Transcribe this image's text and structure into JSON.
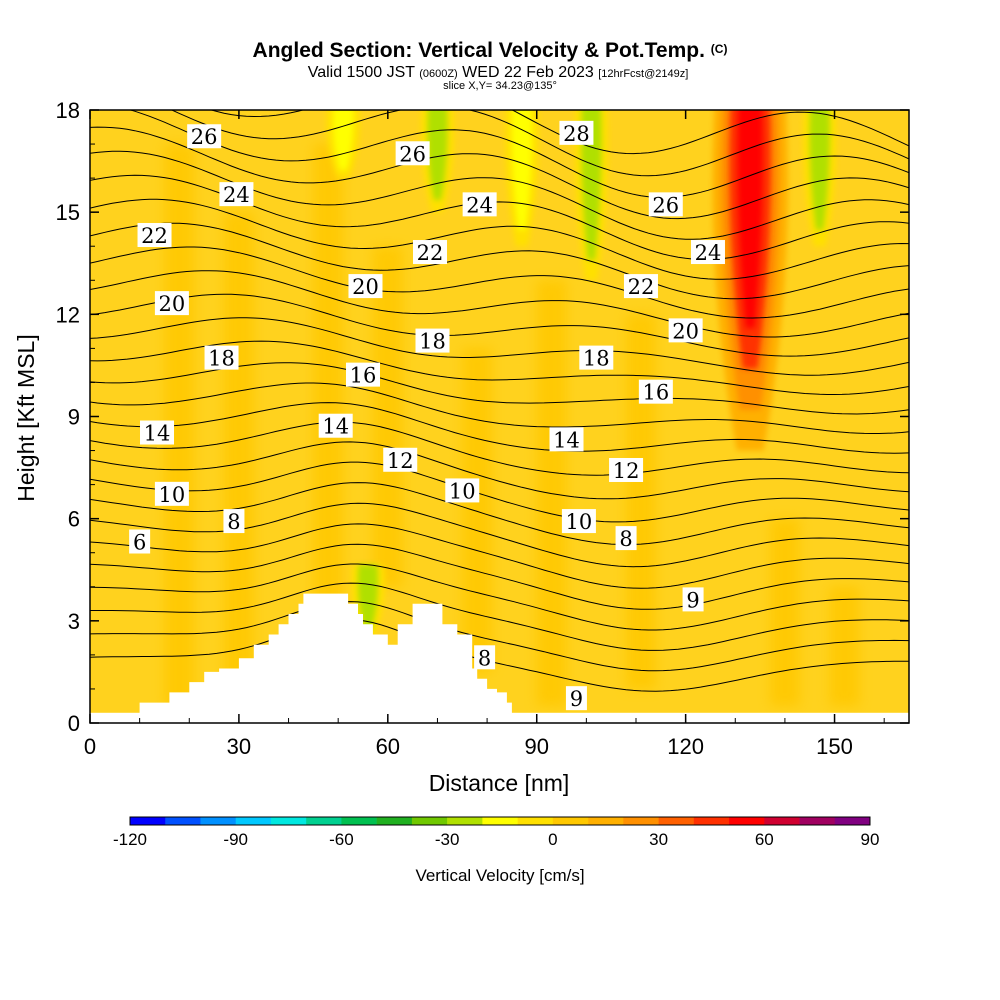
{
  "chart_data": {
    "type": "heatmap",
    "title": "Angled Section: Vertical Velocity & Pot.Temp.",
    "title_suffix": "(C)",
    "subtitle": {
      "valid_prefix": "Valid 1500 JST",
      "utc": "(0600Z)",
      "date": "WED 22 Feb 2023",
      "forecast": "[12hrFcst@2149z]"
    },
    "slice_text": "slice X,Y= 34.23@135°",
    "xlabel": "Distance [nm]",
    "ylabel": "Height [Kft MSL]",
    "xlim": [
      0,
      165
    ],
    "ylim": [
      0,
      18
    ],
    "xticks": [
      0,
      30,
      60,
      90,
      120,
      150
    ],
    "yticks": [
      0,
      3,
      6,
      9,
      12,
      15,
      18
    ],
    "colorbar": {
      "label": "Vertical Velocity [cm/s]",
      "tick_labels": [
        "-120",
        "-90",
        "-60",
        "-30",
        "0",
        "30",
        "60",
        "90"
      ],
      "tick_values": [
        -120,
        -90,
        -60,
        -30,
        0,
        30,
        60,
        90
      ],
      "colors": [
        "#0000ff",
        "#0050ff",
        "#0090ff",
        "#00c8ff",
        "#00e8e0",
        "#00d090",
        "#00c050",
        "#20b020",
        "#70c800",
        "#b0e000",
        "#ffff00",
        "#ffe000",
        "#ffc800",
        "#ffb000",
        "#ff9000",
        "#ff6000",
        "#ff3000",
        "#ff0000",
        "#d00030",
        "#a00060",
        "#800080"
      ]
    },
    "background_color": "#ffd21e",
    "velocity_features": [
      {
        "kind": "updraft",
        "x": 133,
        "y_from": 8,
        "y_to": 18,
        "peak_cm_s": 55
      },
      {
        "kind": "downdraft",
        "x": 101,
        "y_from": 13,
        "y_to": 18,
        "peak_cm_s": -25
      },
      {
        "kind": "downdraft",
        "x": 70,
        "y_from": 15,
        "y_to": 18,
        "peak_cm_s": -25
      },
      {
        "kind": "downdraft",
        "x": 87,
        "y_from": 14,
        "y_to": 18,
        "peak_cm_s": -20
      },
      {
        "kind": "downdraft",
        "x": 147,
        "y_from": 14,
        "y_to": 18,
        "peak_cm_s": -25
      },
      {
        "kind": "downdraft",
        "x": 51,
        "y_from": 16,
        "y_to": 18,
        "peak_cm_s": -15
      },
      {
        "kind": "downdraft",
        "x": 56,
        "y_from": 2.5,
        "y_to": 4.5,
        "peak_cm_s": -25
      }
    ],
    "theta_label_values": [
      "26",
      "24",
      "22",
      "20",
      "18",
      "14",
      "10",
      "6",
      "8",
      "16",
      "12",
      "28",
      "9"
    ],
    "contour_labels": [
      {
        "text": "26",
        "x": 23,
        "y": 17.2
      },
      {
        "text": "24",
        "x": 29.5,
        "y": 15.5
      },
      {
        "text": "22",
        "x": 13,
        "y": 14.3
      },
      {
        "text": "20",
        "x": 16.5,
        "y": 12.3
      },
      {
        "text": "18",
        "x": 26.5,
        "y": 10.7
      },
      {
        "text": "14",
        "x": 13.5,
        "y": 8.5
      },
      {
        "text": "10",
        "x": 16.5,
        "y": 6.7
      },
      {
        "text": "6",
        "x": 10,
        "y": 5.3
      },
      {
        "text": "8",
        "x": 29,
        "y": 5.9
      },
      {
        "text": "26",
        "x": 65,
        "y": 16.7
      },
      {
        "text": "20",
        "x": 55.5,
        "y": 12.8
      },
      {
        "text": "16",
        "x": 55,
        "y": 10.2
      },
      {
        "text": "14",
        "x": 49.5,
        "y": 8.7
      },
      {
        "text": "22",
        "x": 68.5,
        "y": 13.8
      },
      {
        "text": "24",
        "x": 78.5,
        "y": 15.2
      },
      {
        "text": "18",
        "x": 69,
        "y": 11.2
      },
      {
        "text": "12",
        "x": 62.5,
        "y": 7.7
      },
      {
        "text": "10",
        "x": 75,
        "y": 6.8
      },
      {
        "text": "28",
        "x": 98,
        "y": 17.3
      },
      {
        "text": "26",
        "x": 116,
        "y": 15.2
      },
      {
        "text": "24",
        "x": 124.5,
        "y": 13.8
      },
      {
        "text": "22",
        "x": 111,
        "y": 12.8
      },
      {
        "text": "20",
        "x": 120,
        "y": 11.5
      },
      {
        "text": "18",
        "x": 102,
        "y": 10.7
      },
      {
        "text": "16",
        "x": 114,
        "y": 9.7
      },
      {
        "text": "14",
        "x": 96,
        "y": 8.3
      },
      {
        "text": "12",
        "x": 108,
        "y": 7.4
      },
      {
        "text": "10",
        "x": 98.5,
        "y": 5.9
      },
      {
        "text": "8",
        "x": 108,
        "y": 5.4
      },
      {
        "text": "9",
        "x": 121.5,
        "y": 3.6
      },
      {
        "text": "8",
        "x": 79.5,
        "y": 1.9
      },
      {
        "text": "9",
        "x": 98,
        "y": 0.7
      }
    ],
    "terrain_blocks": [
      [
        10,
        0,
        0.6
      ],
      [
        16,
        0.6,
        0.9
      ],
      [
        20,
        0.9,
        1.2
      ],
      [
        23,
        1.2,
        1.5
      ],
      [
        26,
        1.5,
        1.6
      ],
      [
        30,
        1.6,
        1.9
      ],
      [
        33,
        1.9,
        2.3
      ],
      [
        36,
        2.3,
        2.6
      ],
      [
        38,
        2.6,
        2.9
      ],
      [
        40,
        2.9,
        3.2
      ],
      [
        42,
        3.2,
        3.5
      ],
      [
        43,
        3.5,
        3.8
      ],
      [
        52,
        3.8,
        3.5
      ],
      [
        54,
        3.5,
        3.2
      ],
      [
        55,
        3.2,
        2.9
      ],
      [
        57,
        2.9,
        2.6
      ],
      [
        60,
        2.6,
        2.3
      ],
      [
        62,
        2.3,
        2.9
      ],
      [
        65,
        2.9,
        3.5
      ],
      [
        71,
        3.5,
        2.9
      ],
      [
        74,
        2.9,
        2.6
      ],
      [
        77,
        2.6,
        1.6
      ],
      [
        78,
        1.6,
        1.3
      ],
      [
        80,
        1.3,
        1.0
      ],
      [
        82,
        1.0,
        0.9
      ],
      [
        84,
        0.9,
        0.6
      ],
      [
        85,
        0.6,
        0.0
      ]
    ]
  }
}
